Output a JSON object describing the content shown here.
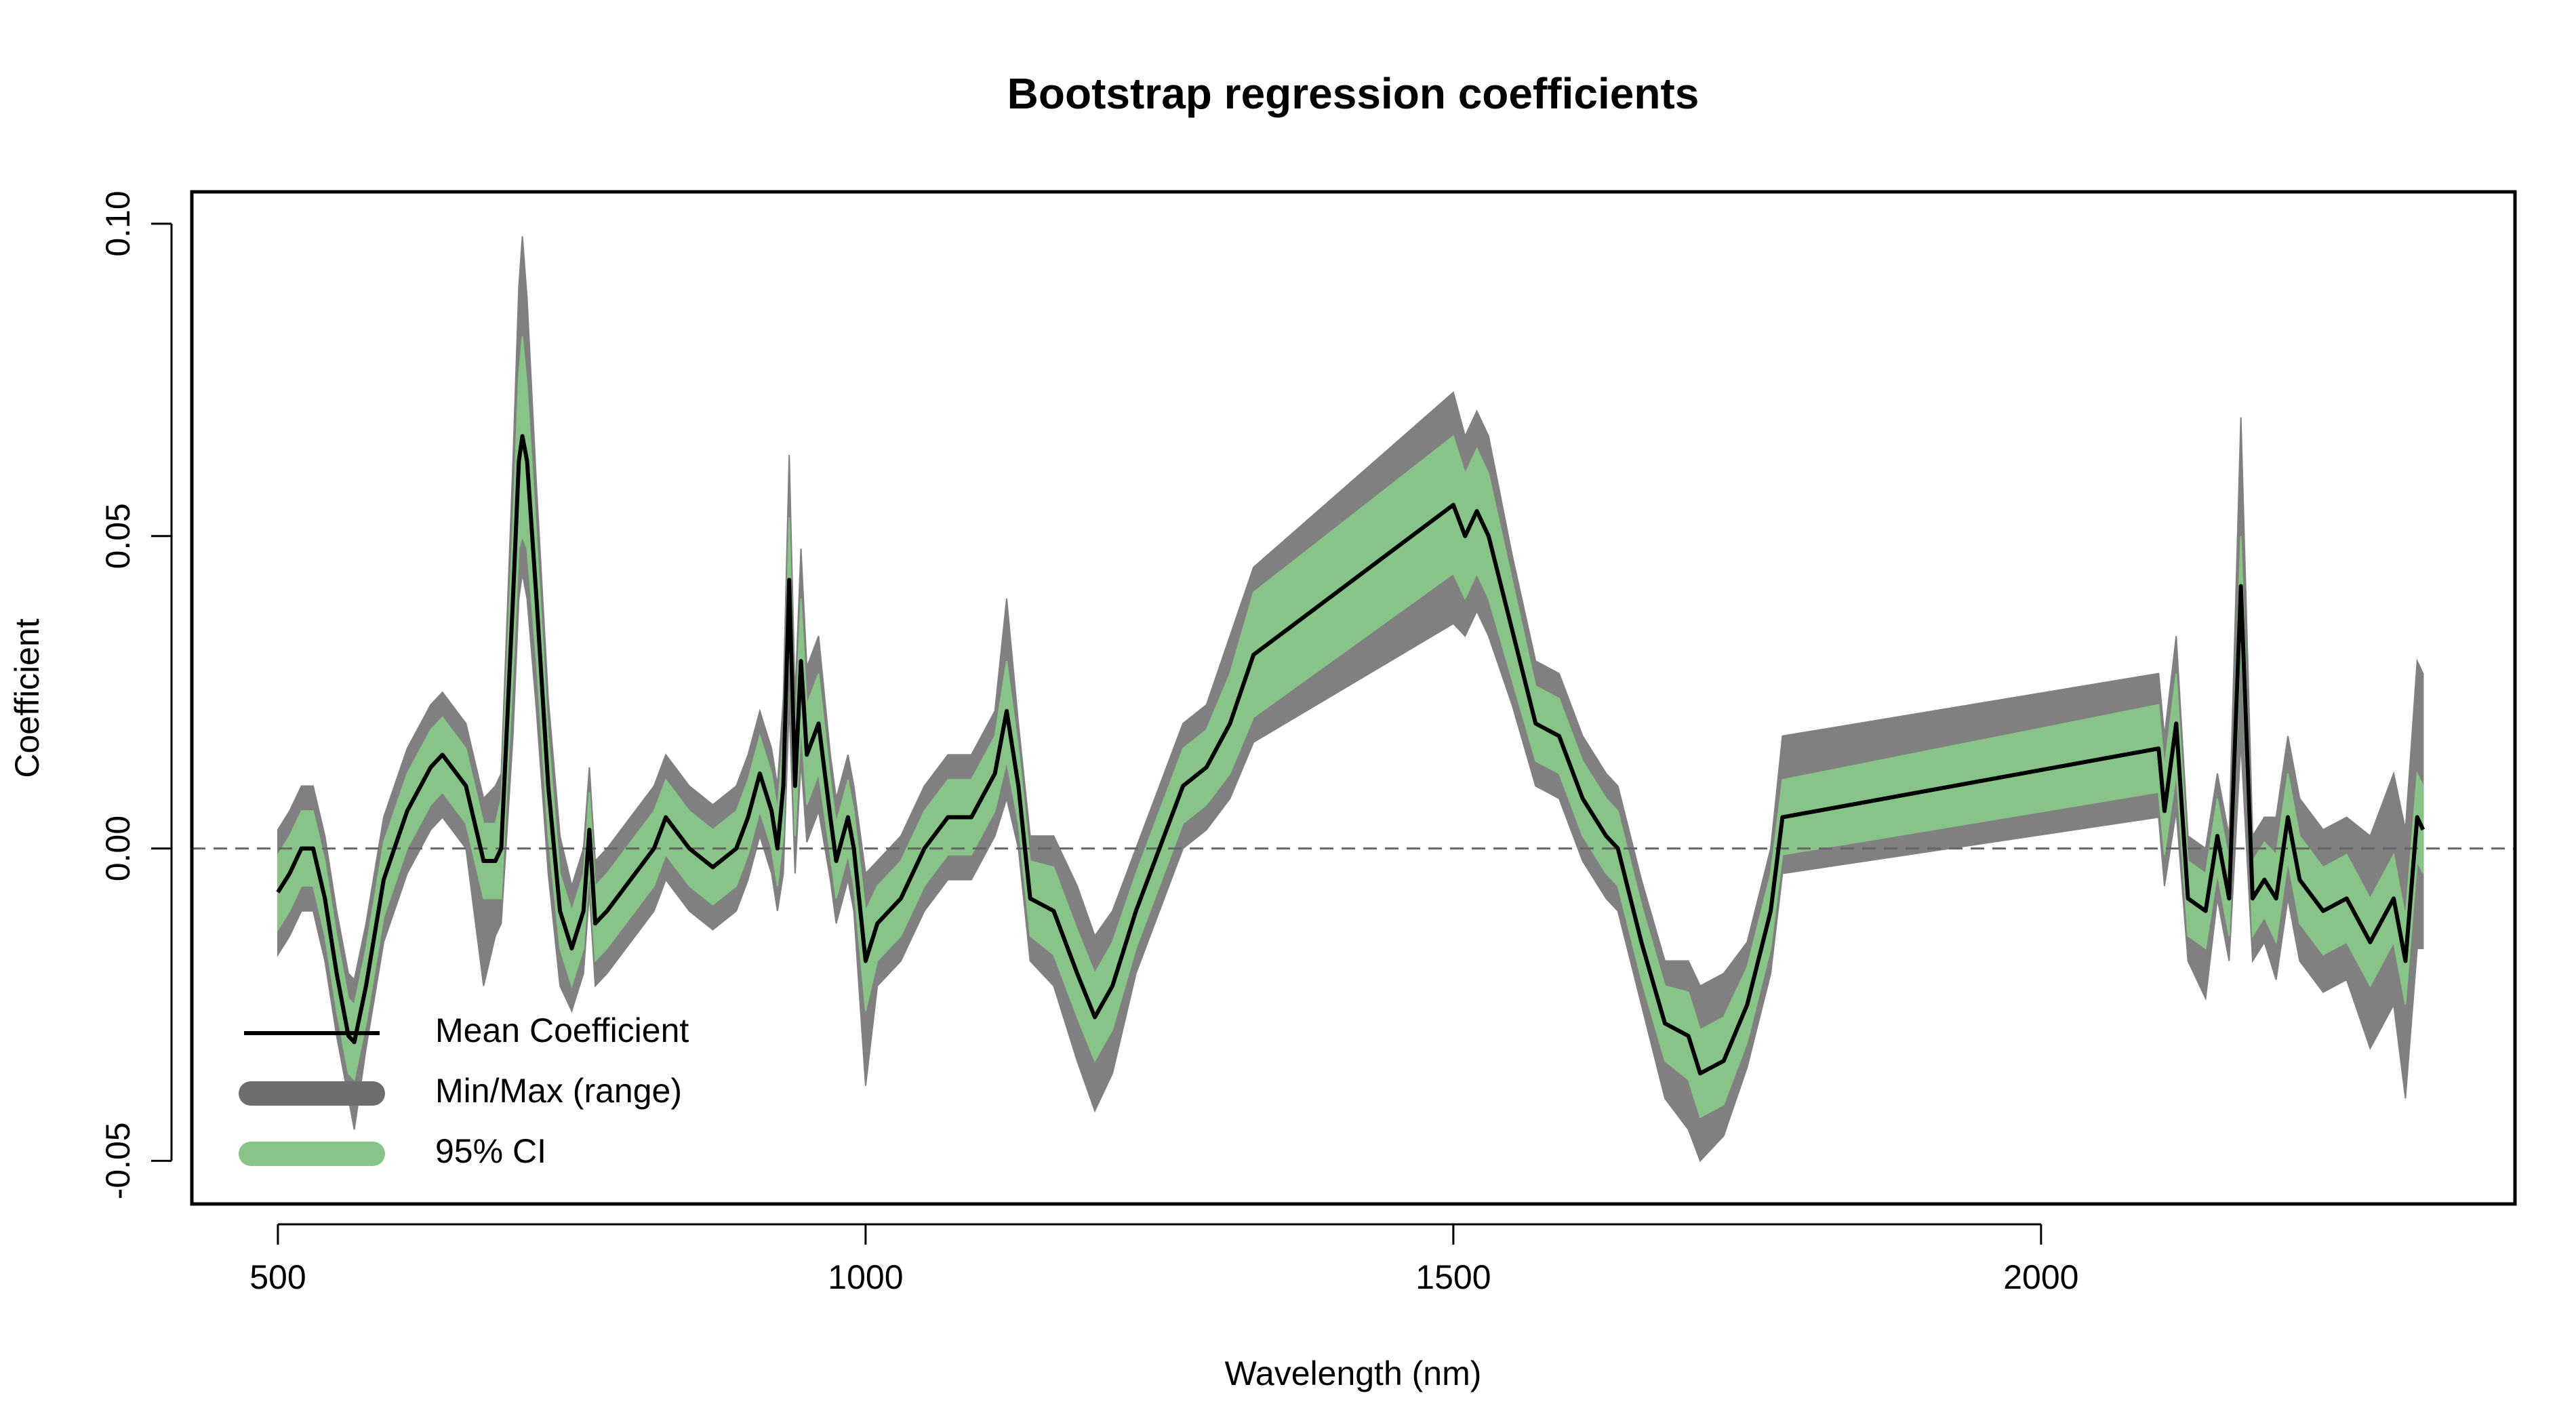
{
  "chart_data": {
    "type": "band-line",
    "title": "Bootstrap regression coefficients",
    "xlabel": "Wavelength (nm)",
    "ylabel": "Coefficient",
    "xlim": [
      426.8,
      2403.2
    ],
    "ylim": [
      -0.0569,
      0.1051
    ],
    "xticks": [
      500,
      1000,
      1500,
      2000
    ],
    "yticks": [
      -0.05,
      {
        "value": 0,
        "label": "0.00"
      },
      0.05,
      {
        "value": 0.1,
        "label": "0.10"
      }
    ],
    "hline": 0,
    "legend": "bottom-left",
    "x": [
      500,
      510,
      520,
      530,
      540,
      550,
      560,
      565,
      575,
      590,
      610,
      630,
      640,
      660,
      675,
      685,
      690,
      700,
      705,
      708,
      712,
      720,
      730,
      740,
      750,
      760,
      765,
      770,
      780,
      800,
      820,
      830,
      850,
      870,
      890,
      900,
      910,
      920,
      925,
      930,
      935,
      940,
      945,
      950,
      960,
      970,
      975,
      985,
      990,
      1000,
      1010,
      1030,
      1050,
      1070,
      1090,
      1110,
      1120,
      1130,
      1140,
      1160,
      1180,
      1195,
      1210,
      1230,
      1250,
      1270,
      1290,
      1310,
      1330,
      1500,
      1510,
      1520,
      1530,
      1550,
      1570,
      1590,
      1610,
      1630,
      1640,
      1660,
      1680,
      1700,
      1710,
      1730,
      1750,
      1770,
      1780,
      2100,
      2105,
      2115,
      2125,
      2140,
      2150,
      2160,
      2170,
      2180,
      2190,
      2200,
      2210,
      2220,
      2240,
      2260,
      2280,
      2300,
      2310,
      2320,
      2325
    ],
    "series": [
      {
        "name": "Mean Coefficient",
        "color": "#000000",
        "values": [
          -0.007,
          -0.004,
          0.0,
          0.0,
          -0.008,
          -0.02,
          -0.03,
          -0.031,
          -0.022,
          -0.005,
          0.006,
          0.013,
          0.015,
          0.01,
          -0.002,
          -0.002,
          0.0,
          0.04,
          0.062,
          0.066,
          0.062,
          0.04,
          0.01,
          -0.01,
          -0.016,
          -0.01,
          0.003,
          -0.012,
          -0.01,
          -0.005,
          0.0,
          0.005,
          0.0,
          -0.003,
          0.0,
          0.005,
          0.012,
          0.006,
          0.0,
          0.01,
          0.043,
          0.01,
          0.03,
          0.015,
          0.02,
          0.005,
          -0.002,
          0.005,
          0.0,
          -0.018,
          -0.012,
          -0.008,
          0.0,
          0.005,
          0.005,
          0.012,
          0.022,
          0.01,
          -0.008,
          -0.01,
          -0.02,
          -0.027,
          -0.022,
          -0.01,
          0.0,
          0.01,
          0.013,
          0.02,
          0.031,
          0.055,
          0.05,
          0.054,
          0.05,
          0.035,
          0.02,
          0.018,
          0.008,
          0.002,
          0.0,
          -0.015,
          -0.028,
          -0.03,
          -0.036,
          -0.034,
          -0.025,
          -0.01,
          0.005,
          0.016,
          0.006,
          0.02,
          -0.008,
          -0.01,
          0.002,
          -0.008,
          0.042,
          -0.008,
          -0.005,
          -0.008,
          0.005,
          -0.005,
          -0.01,
          -0.008,
          -0.015,
          -0.008,
          -0.018,
          0.005,
          0.003
        ]
      },
      {
        "name": "Min/Max (range)",
        "color": "#808080",
        "lower": [
          -0.017,
          -0.014,
          -0.01,
          -0.01,
          -0.018,
          -0.03,
          -0.04,
          -0.045,
          -0.032,
          -0.015,
          -0.004,
          0.003,
          0.005,
          0.0,
          -0.022,
          -0.014,
          -0.012,
          0.018,
          0.04,
          0.044,
          0.04,
          0.022,
          -0.004,
          -0.022,
          -0.026,
          -0.02,
          -0.007,
          -0.022,
          -0.02,
          -0.015,
          -0.01,
          -0.005,
          -0.01,
          -0.013,
          -0.01,
          -0.005,
          0.002,
          -0.004,
          -0.01,
          -0.004,
          0.023,
          -0.004,
          0.014,
          0.001,
          0.006,
          -0.005,
          -0.012,
          -0.005,
          -0.01,
          -0.038,
          -0.022,
          -0.018,
          -0.01,
          -0.005,
          -0.005,
          0.002,
          0.008,
          0.0,
          -0.018,
          -0.022,
          -0.034,
          -0.042,
          -0.036,
          -0.02,
          -0.01,
          0.0,
          0.003,
          0.008,
          0.017,
          0.036,
          0.034,
          0.038,
          0.034,
          0.023,
          0.01,
          0.008,
          -0.002,
          -0.008,
          -0.01,
          -0.025,
          -0.04,
          -0.045,
          -0.05,
          -0.046,
          -0.035,
          -0.02,
          -0.004,
          0.005,
          -0.006,
          0.006,
          -0.018,
          -0.024,
          -0.008,
          -0.018,
          0.017,
          -0.018,
          -0.015,
          -0.021,
          -0.008,
          -0.018,
          -0.023,
          -0.021,
          -0.032,
          -0.025,
          -0.04,
          -0.016,
          -0.016
        ],
        "upper": [
          0.003,
          0.006,
          0.01,
          0.01,
          0.002,
          -0.01,
          -0.02,
          -0.021,
          -0.012,
          0.005,
          0.016,
          0.023,
          0.025,
          0.02,
          0.008,
          0.01,
          0.012,
          0.062,
          0.09,
          0.098,
          0.088,
          0.058,
          0.024,
          0.002,
          -0.006,
          0.0,
          0.013,
          -0.002,
          0.0,
          0.005,
          0.01,
          0.015,
          0.01,
          0.007,
          0.01,
          0.015,
          0.022,
          0.016,
          0.01,
          0.024,
          0.063,
          0.024,
          0.048,
          0.029,
          0.034,
          0.015,
          0.008,
          0.015,
          0.01,
          -0.004,
          -0.002,
          0.002,
          0.01,
          0.015,
          0.015,
          0.022,
          0.04,
          0.02,
          0.002,
          0.002,
          -0.006,
          -0.014,
          -0.01,
          0.0,
          0.01,
          0.02,
          0.023,
          0.034,
          0.045,
          0.073,
          0.066,
          0.07,
          0.066,
          0.047,
          0.03,
          0.028,
          0.018,
          0.012,
          0.01,
          -0.005,
          -0.018,
          -0.018,
          -0.022,
          -0.02,
          -0.015,
          0.0,
          0.018,
          0.028,
          0.018,
          0.034,
          0.002,
          0.0,
          0.012,
          0.002,
          0.069,
          0.002,
          0.005,
          0.005,
          0.018,
          0.008,
          0.003,
          0.005,
          0.002,
          0.012,
          0.003,
          0.03,
          0.028
        ]
      },
      {
        "name": "95% CI",
        "color": "#88c488",
        "lower": [
          -0.013,
          -0.01,
          -0.006,
          -0.006,
          -0.014,
          -0.026,
          -0.036,
          -0.037,
          -0.028,
          -0.011,
          0.0,
          0.007,
          0.009,
          0.004,
          -0.008,
          -0.008,
          -0.008,
          0.028,
          0.048,
          0.05,
          0.048,
          0.03,
          0.002,
          -0.016,
          -0.022,
          -0.016,
          -0.003,
          -0.018,
          -0.016,
          -0.011,
          -0.006,
          -0.001,
          -0.006,
          -0.009,
          -0.006,
          -0.001,
          0.006,
          0.0,
          -0.006,
          0.002,
          0.033,
          0.002,
          0.02,
          0.007,
          0.012,
          -0.001,
          -0.008,
          -0.001,
          -0.006,
          -0.026,
          -0.018,
          -0.014,
          -0.006,
          -0.001,
          -0.001,
          0.006,
          0.014,
          0.004,
          -0.014,
          -0.017,
          -0.027,
          -0.034,
          -0.029,
          -0.016,
          -0.006,
          0.004,
          0.007,
          0.012,
          0.021,
          0.044,
          0.04,
          0.044,
          0.04,
          0.027,
          0.014,
          0.012,
          0.002,
          -0.004,
          -0.006,
          -0.021,
          -0.034,
          -0.037,
          -0.043,
          -0.041,
          -0.031,
          -0.016,
          -0.001,
          0.009,
          -0.001,
          0.012,
          -0.014,
          -0.016,
          -0.004,
          -0.014,
          0.034,
          -0.014,
          -0.011,
          -0.015,
          -0.002,
          -0.012,
          -0.017,
          -0.015,
          -0.022,
          -0.015,
          -0.025,
          -0.002,
          -0.004
        ],
        "upper": [
          -0.001,
          0.002,
          0.006,
          0.006,
          -0.002,
          -0.014,
          -0.024,
          -0.025,
          -0.016,
          0.001,
          0.012,
          0.019,
          0.021,
          0.016,
          0.004,
          0.004,
          0.008,
          0.052,
          0.076,
          0.082,
          0.074,
          0.05,
          0.018,
          -0.004,
          -0.01,
          -0.004,
          0.009,
          -0.006,
          -0.004,
          0.001,
          0.006,
          0.011,
          0.006,
          0.003,
          0.006,
          0.011,
          0.018,
          0.012,
          0.006,
          0.018,
          0.053,
          0.018,
          0.04,
          0.023,
          0.028,
          0.011,
          0.004,
          0.011,
          0.006,
          -0.01,
          -0.006,
          -0.002,
          0.006,
          0.011,
          0.011,
          0.018,
          0.03,
          0.016,
          -0.002,
          -0.003,
          -0.013,
          -0.02,
          -0.015,
          -0.004,
          0.006,
          0.016,
          0.019,
          0.028,
          0.041,
          0.066,
          0.06,
          0.064,
          0.06,
          0.043,
          0.026,
          0.024,
          0.014,
          0.008,
          0.006,
          -0.009,
          -0.022,
          -0.023,
          -0.029,
          -0.027,
          -0.019,
          -0.004,
          0.011,
          0.023,
          0.013,
          0.028,
          -0.002,
          -0.004,
          0.008,
          -0.002,
          0.05,
          -0.002,
          0.001,
          -0.001,
          0.012,
          0.002,
          -0.003,
          -0.001,
          -0.008,
          -0.001,
          -0.011,
          0.012,
          0.01
        ]
      }
    ]
  }
}
